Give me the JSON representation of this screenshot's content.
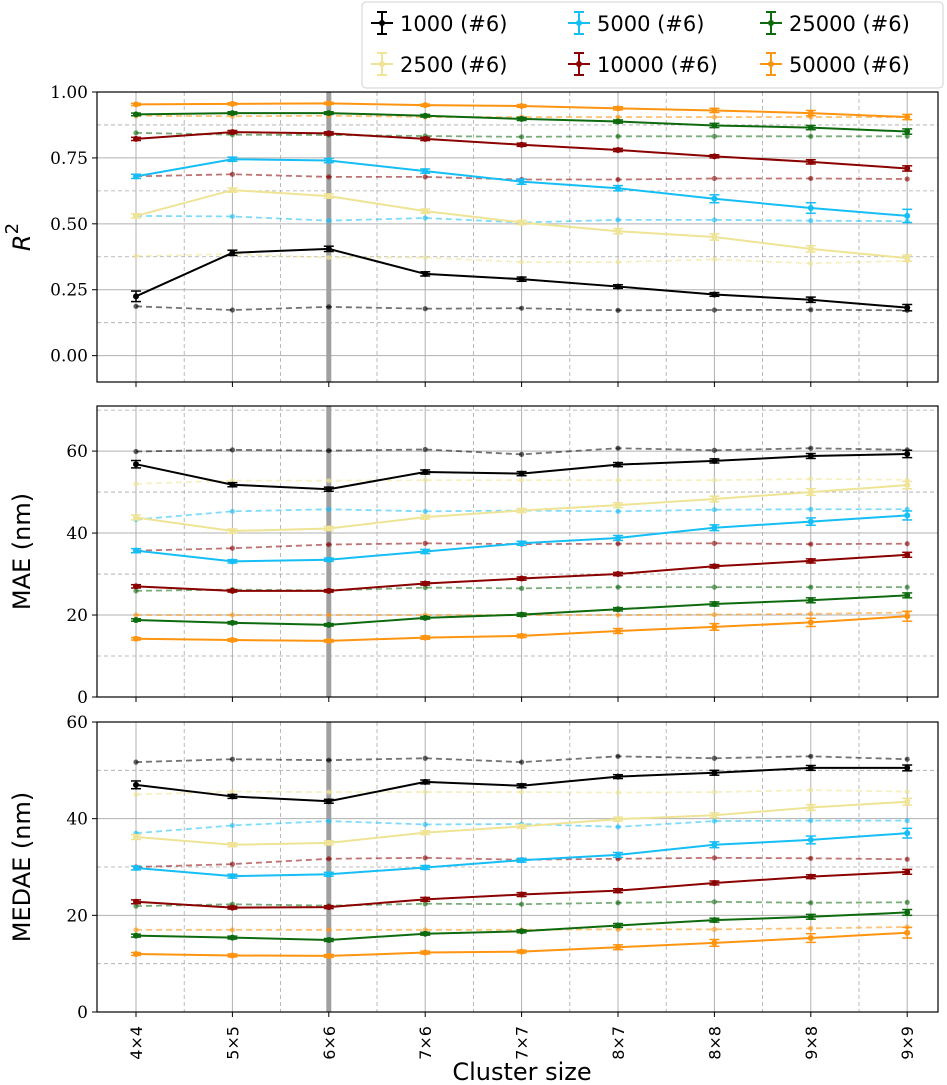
{
  "chart_data": [
    {
      "panel": "r2",
      "type": "line",
      "ylabel": "R²",
      "ylabel_main": "R",
      "ylabel_sup": "2",
      "ylim": [
        -0.1,
        1.0
      ],
      "yticks": [
        0.0,
        0.25,
        0.5,
        0.75,
        1.0
      ],
      "ytick_labels": [
        "0.00",
        "0.25",
        "0.50",
        "0.75",
        "1.00"
      ],
      "minor_y": [
        0.125,
        0.375,
        0.625,
        0.875
      ],
      "series": [
        {
          "name": "1000",
          "values": [
            0.225,
            0.39,
            0.405,
            0.31,
            0.29,
            0.262,
            0.232,
            0.212,
            0.182
          ],
          "errors": [
            0.02,
            0.01,
            0.01,
            0.008,
            0.008,
            0.007,
            0.007,
            0.01,
            0.012
          ],
          "baseline": [
            0.187,
            0.173,
            0.185,
            0.178,
            0.18,
            0.172,
            0.173,
            0.174,
            0.172
          ]
        },
        {
          "name": "2500",
          "values": [
            0.53,
            0.628,
            0.605,
            0.548,
            0.505,
            0.472,
            0.45,
            0.405,
            0.37
          ],
          "errors": [
            0.008,
            0.008,
            0.008,
            0.008,
            0.008,
            0.01,
            0.012,
            0.012,
            0.012
          ],
          "baseline": [
            0.378,
            0.385,
            0.372,
            0.372,
            0.355,
            0.355,
            0.365,
            0.35,
            0.36
          ]
        },
        {
          "name": "5000",
          "values": [
            0.68,
            0.745,
            0.74,
            0.7,
            0.66,
            0.635,
            0.595,
            0.56,
            0.53
          ],
          "errors": [
            0.008,
            0.008,
            0.008,
            0.008,
            0.01,
            0.01,
            0.015,
            0.02,
            0.025
          ],
          "baseline": [
            0.53,
            0.528,
            0.512,
            0.522,
            0.505,
            0.515,
            0.515,
            0.512,
            0.51
          ]
        },
        {
          "name": "10000",
          "values": [
            0.822,
            0.848,
            0.843,
            0.822,
            0.8,
            0.78,
            0.756,
            0.735,
            0.71
          ],
          "errors": [
            0.006,
            0.006,
            0.006,
            0.006,
            0.006,
            0.006,
            0.006,
            0.008,
            0.01
          ],
          "baseline": [
            0.68,
            0.688,
            0.678,
            0.678,
            0.668,
            0.668,
            0.672,
            0.672,
            0.67
          ]
        },
        {
          "name": "25000",
          "values": [
            0.915,
            0.92,
            0.92,
            0.91,
            0.898,
            0.888,
            0.873,
            0.865,
            0.85
          ],
          "errors": [
            0.005,
            0.005,
            0.005,
            0.005,
            0.006,
            0.006,
            0.008,
            0.008,
            0.01
          ],
          "baseline": [
            0.845,
            0.838,
            0.837,
            0.833,
            0.83,
            0.832,
            0.832,
            0.832,
            0.832
          ]
        },
        {
          "name": "50000",
          "values": [
            0.953,
            0.955,
            0.957,
            0.95,
            0.947,
            0.938,
            0.93,
            0.92,
            0.905
          ],
          "errors": [
            0.004,
            0.004,
            0.004,
            0.004,
            0.005,
            0.006,
            0.008,
            0.01,
            0.01
          ],
          "baseline": [
            0.91,
            0.908,
            0.91,
            0.905,
            0.905,
            0.905,
            0.905,
            0.905,
            0.905
          ]
        }
      ]
    },
    {
      "panel": "mae",
      "type": "line",
      "ylabel": "MAE (nm)",
      "ylim": [
        0,
        71
      ],
      "yticks": [
        0,
        20,
        40,
        60
      ],
      "ytick_labels": [
        "0",
        "20",
        "40",
        "60"
      ],
      "minor_y": [
        10,
        30,
        50,
        70
      ],
      "series": [
        {
          "name": "1000",
          "values": [
            56.8,
            51.8,
            50.7,
            54.9,
            54.5,
            56.7,
            57.6,
            58.8,
            59.3
          ],
          "errors": [
            0.9,
            0.5,
            0.5,
            0.5,
            0.5,
            0.5,
            0.5,
            0.6,
            0.9
          ],
          "baseline": [
            59.9,
            60.3,
            60.1,
            60.4,
            59.2,
            60.7,
            60.2,
            60.7,
            60.3
          ]
        },
        {
          "name": "2500",
          "values": [
            43.8,
            40.5,
            41.1,
            43.9,
            45.5,
            46.8,
            48.3,
            50.0,
            51.7
          ],
          "errors": [
            0.6,
            0.5,
            0.5,
            0.5,
            0.5,
            0.6,
            0.7,
            0.8,
            0.9
          ],
          "baseline": [
            52.0,
            52.8,
            52.8,
            52.9,
            52.9,
            52.9,
            52.9,
            53.2,
            53.0
          ]
        },
        {
          "name": "5000",
          "values": [
            35.7,
            33.1,
            33.5,
            35.5,
            37.5,
            38.8,
            41.3,
            42.8,
            44.3
          ],
          "errors": [
            0.5,
            0.4,
            0.4,
            0.5,
            0.5,
            0.6,
            0.7,
            0.9,
            1.1
          ],
          "baseline": [
            43.3,
            45.3,
            45.8,
            45.3,
            45.5,
            45.3,
            45.7,
            45.8,
            45.8
          ]
        },
        {
          "name": "10000",
          "values": [
            27.0,
            25.9,
            25.9,
            27.7,
            28.9,
            30.0,
            31.9,
            33.2,
            34.7
          ],
          "errors": [
            0.4,
            0.3,
            0.3,
            0.4,
            0.4,
            0.4,
            0.4,
            0.5,
            0.6
          ],
          "baseline": [
            35.7,
            36.3,
            37.2,
            37.5,
            37.3,
            37.4,
            37.5,
            37.3,
            37.4
          ]
        },
        {
          "name": "25000",
          "values": [
            18.8,
            18.1,
            17.6,
            19.3,
            20.1,
            21.4,
            22.7,
            23.6,
            24.8
          ],
          "errors": [
            0.3,
            0.3,
            0.3,
            0.3,
            0.4,
            0.4,
            0.5,
            0.6,
            0.6
          ],
          "baseline": [
            25.9,
            26.2,
            26.0,
            26.7,
            26.5,
            26.8,
            26.8,
            26.8,
            26.8
          ]
        },
        {
          "name": "50000",
          "values": [
            14.2,
            13.9,
            13.7,
            14.5,
            14.9,
            16.1,
            17.1,
            18.2,
            19.7
          ],
          "errors": [
            0.3,
            0.3,
            0.3,
            0.4,
            0.4,
            0.6,
            0.8,
            1.0,
            1.2
          ],
          "baseline": [
            20.0,
            20.0,
            20.0,
            20.0,
            20.0,
            20.0,
            20.1,
            20.3,
            20.6
          ]
        }
      ]
    },
    {
      "panel": "medae",
      "type": "line",
      "ylabel": "MEDAE (nm)",
      "xlabel": "Cluster size",
      "ylim": [
        0,
        60
      ],
      "yticks": [
        0,
        20,
        40,
        60
      ],
      "ytick_labels": [
        "0",
        "20",
        "40",
        "60"
      ],
      "minor_y": [
        10,
        30,
        50
      ],
      "series": [
        {
          "name": "1000",
          "values": [
            47.0,
            44.6,
            43.6,
            47.6,
            46.8,
            48.7,
            49.5,
            50.5,
            50.5
          ],
          "errors": [
            0.8,
            0.4,
            0.4,
            0.4,
            0.4,
            0.4,
            0.5,
            0.5,
            0.6
          ],
          "baseline": [
            51.7,
            52.3,
            52.1,
            52.5,
            51.7,
            52.9,
            52.5,
            52.9,
            52.3
          ]
        },
        {
          "name": "2500",
          "values": [
            36.2,
            34.6,
            35.0,
            37.1,
            38.4,
            39.9,
            40.7,
            42.3,
            43.5
          ],
          "errors": [
            0.5,
            0.4,
            0.4,
            0.4,
            0.4,
            0.4,
            0.5,
            0.6,
            0.7
          ],
          "baseline": [
            45.0,
            45.6,
            45.5,
            45.5,
            45.5,
            45.4,
            45.5,
            45.9,
            45.6
          ]
        },
        {
          "name": "5000",
          "values": [
            29.8,
            28.1,
            28.5,
            29.9,
            31.4,
            32.5,
            34.6,
            35.6,
            37.0
          ],
          "errors": [
            0.4,
            0.4,
            0.4,
            0.4,
            0.4,
            0.5,
            0.6,
            0.8,
            1.0
          ],
          "baseline": [
            37.0,
            38.6,
            39.5,
            38.8,
            38.9,
            38.3,
            39.5,
            39.6,
            39.6
          ]
        },
        {
          "name": "10000",
          "values": [
            22.8,
            21.6,
            21.7,
            23.3,
            24.3,
            25.1,
            26.7,
            28.0,
            29.0
          ],
          "errors": [
            0.4,
            0.3,
            0.3,
            0.4,
            0.4,
            0.4,
            0.4,
            0.4,
            0.5
          ],
          "baseline": [
            30.0,
            30.6,
            31.7,
            31.9,
            31.5,
            31.7,
            31.9,
            31.8,
            31.6
          ]
        },
        {
          "name": "25000",
          "values": [
            15.8,
            15.4,
            14.9,
            16.2,
            16.7,
            17.9,
            19.0,
            19.7,
            20.6
          ],
          "errors": [
            0.3,
            0.3,
            0.3,
            0.3,
            0.3,
            0.4,
            0.4,
            0.5,
            0.6
          ],
          "baseline": [
            21.9,
            22.3,
            22.0,
            22.4,
            22.3,
            22.6,
            22.8,
            22.6,
            22.7
          ]
        },
        {
          "name": "50000",
          "values": [
            12.0,
            11.7,
            11.6,
            12.3,
            12.5,
            13.4,
            14.3,
            15.3,
            16.4
          ],
          "errors": [
            0.3,
            0.3,
            0.3,
            0.3,
            0.3,
            0.5,
            0.7,
            0.9,
            1.1
          ],
          "baseline": [
            17.0,
            17.0,
            17.0,
            17.0,
            17.0,
            17.1,
            17.1,
            17.3,
            17.6
          ]
        }
      ]
    }
  ],
  "categories": [
    "4×4",
    "5×5",
    "6×6",
    "7×6",
    "7×7",
    "8×7",
    "8×8",
    "9×8",
    "9×9"
  ],
  "highlight_category": "6×6",
  "xlabel": "Cluster size",
  "legend": {
    "position": "top-right",
    "entries": [
      {
        "name": "1000",
        "label": "1000 (#6)",
        "color": "#000000"
      },
      {
        "name": "5000",
        "label": "5000 (#6)",
        "color": "#15bef5"
      },
      {
        "name": "25000",
        "label": "25000 (#6)",
        "color": "#0e6a0e"
      },
      {
        "name": "2500",
        "label": "2500 (#6)",
        "color": "#efe395"
      },
      {
        "name": "10000",
        "label": "10000 (#6)",
        "color": "#8b0000"
      },
      {
        "name": "50000",
        "label": "50000 (#6)",
        "color": "#ff9410"
      }
    ]
  },
  "colors": {
    "1000": "#000000",
    "2500": "#efe395",
    "5000": "#15bef5",
    "10000": "#8b0000",
    "25000": "#0e6a0e",
    "50000": "#ff9410",
    "grid_major": "#b0b0b0",
    "grid_minor": "#a8a8a8",
    "highlight": "#a0a0a0"
  }
}
